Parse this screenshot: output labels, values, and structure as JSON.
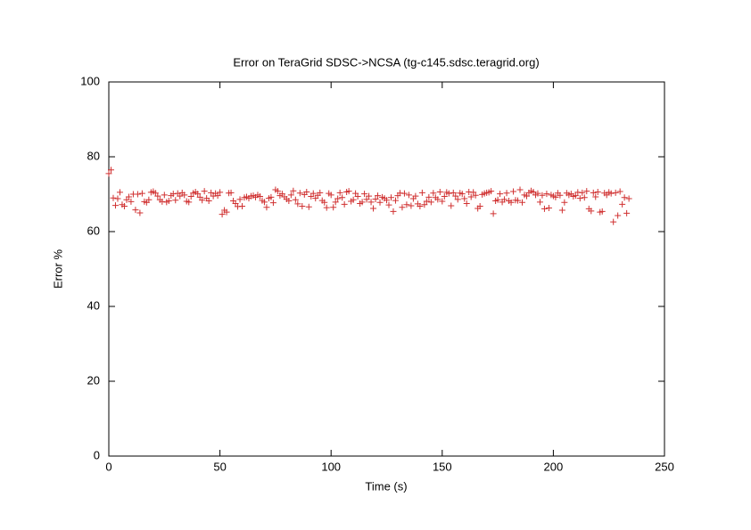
{
  "chart_data": {
    "type": "scatter",
    "title": "Error on TeraGrid SDSC->NCSA (tg-c145.sdsc.teragrid.org)",
    "x_label": "Time (s)",
    "y_label": "Error %",
    "color": "#d03030",
    "xlim": [
      0,
      250
    ],
    "xticks": [
      0,
      50,
      100,
      150,
      200,
      250
    ],
    "ylim": [
      0,
      100
    ],
    "yticks": [
      0,
      20,
      40,
      60,
      80,
      100
    ],
    "x": [
      0,
      1,
      2,
      3,
      4,
      5,
      6,
      7,
      8,
      9,
      10,
      11,
      12,
      13,
      14,
      15,
      16,
      17,
      18,
      19,
      20,
      21,
      22,
      23,
      24,
      25,
      26,
      27,
      28,
      29,
      30,
      31,
      32,
      33,
      34,
      35,
      36,
      37,
      38,
      39,
      40,
      41,
      42,
      43,
      44,
      45,
      46,
      47,
      48,
      49,
      50,
      51,
      52,
      53,
      54,
      55,
      56,
      57,
      58,
      59,
      60,
      61,
      62,
      63,
      64,
      65,
      66,
      67,
      68,
      69,
      70,
      71,
      72,
      73,
      74,
      75,
      76,
      77,
      78,
      79,
      80,
      81,
      82,
      83,
      84,
      85,
      86,
      87,
      88,
      89,
      90,
      91,
      92,
      93,
      94,
      95,
      96,
      97,
      98,
      99,
      100,
      101,
      102,
      103,
      104,
      105,
      106,
      107,
      108,
      109,
      110,
      111,
      112,
      113,
      114,
      115,
      116,
      117,
      118,
      119,
      120,
      121,
      122,
      123,
      124,
      125,
      126,
      127,
      128,
      129,
      130,
      131,
      132,
      133,
      134,
      135,
      136,
      137,
      138,
      139,
      140,
      141,
      142,
      143,
      144,
      145,
      146,
      147,
      148,
      149,
      150,
      151,
      152,
      153,
      154,
      155,
      156,
      157,
      158,
      159,
      160,
      161,
      162,
      163,
      164,
      165,
      166,
      167,
      168,
      169,
      170,
      171,
      172,
      173,
      174,
      175,
      176,
      177,
      178,
      179,
      180,
      181,
      182,
      183,
      184,
      185,
      186,
      187,
      188,
      189,
      190,
      191,
      192,
      193,
      194,
      195,
      196,
      197,
      198,
      199,
      200,
      201,
      202,
      203,
      204,
      205,
      206,
      207,
      208,
      209,
      210,
      211,
      212,
      213,
      214,
      215,
      216,
      217,
      218,
      219,
      220,
      221,
      222,
      223,
      224,
      225,
      226,
      227,
      228,
      229,
      230,
      231,
      232,
      233,
      234
    ],
    "values": [
      75.5,
      76.5,
      69,
      67,
      68.8,
      70.5,
      67.2,
      66.8,
      68.5,
      69.3,
      68,
      70,
      65.8,
      70,
      65,
      70.2,
      68,
      67.8,
      68.5,
      70.5,
      70.7,
      70.3,
      69.5,
      68.5,
      68,
      69.8,
      67.9,
      68.2,
      69.6,
      70.1,
      68.4,
      70.2,
      69.5,
      70.4,
      69.8,
      68.1,
      67.9,
      69.4,
      70.3,
      70.6,
      70.1,
      69.2,
      68.4,
      70.8,
      68.9,
      68.2,
      70.4,
      69.5,
      70.2,
      69.6,
      70.5,
      64.6,
      65.7,
      65.2,
      70.3,
      70.4,
      68.2,
      67.5,
      66.7,
      68.6,
      66.8,
      69.1,
      69.3,
      68.9,
      69.5,
      69.6,
      69.2,
      69.8,
      69.4,
      68.3,
      67.9,
      66.5,
      68.9,
      69.2,
      67.7,
      71.2,
      70.8,
      69.6,
      70.1,
      69.3,
      68.7,
      68.2,
      69.8,
      70.9,
      68.5,
      67.4,
      70.3,
      66.8,
      69.9,
      70.6,
      66.6,
      69.4,
      70.2,
      68.9,
      69.7,
      70.4,
      68.3,
      67.8,
      66.4,
      70.2,
      69.8,
      66.5,
      67.9,
      68.8,
      70.4,
      69.1,
      67.3,
      70.6,
      70.8,
      68.1,
      68.5,
      70.2,
      69.4,
      67.5,
      67.9,
      70.1,
      68.6,
      69.5,
      67.9,
      66.2,
      68.7,
      69.6,
      67.8,
      69.2,
      68.9,
      68.4,
      67.1,
      69.1,
      65.4,
      68.3,
      69.6,
      70.3,
      66.5,
      70.2,
      67.2,
      69.8,
      66.9,
      68.8,
      69.5,
      67.4,
      66.8,
      70.4,
      67.2,
      68.1,
      69.2,
      67.9,
      70.3,
      69.1,
      68.6,
      70.6,
      68.1,
      69.4,
      70.5,
      70.2,
      66.9,
      70.4,
      69.5,
      68.6,
      70.3,
      70.1,
      68.8,
      67.5,
      70.6,
      69.3,
      70.5,
      69.7,
      66.2,
      66.8,
      69.9,
      70.2,
      70.4,
      70.5,
      70.8,
      64.8,
      68.2,
      68.5,
      70.1,
      67.9,
      68.6,
      70.3,
      68.2,
      67.8,
      70.7,
      68.4,
      68.3,
      71.2,
      67.8,
      69.8,
      69.5,
      70.4,
      70.9,
      70.6,
      69.8,
      70.2,
      67.9,
      69.7,
      66.1,
      70.1,
      66.3,
      69.8,
      69.5,
      69.2,
      70.3,
      69.7,
      65.7,
      67.8,
      70.3,
      69.8,
      70.1,
      69.4,
      69.6,
      70.5,
      68.9,
      70.4,
      69.1,
      70.8,
      66.1,
      65.5,
      70.4,
      69.3,
      70.6,
      65.2,
      65.4,
      70.3,
      69.8,
      70.5,
      70.2,
      62.6,
      70.4,
      64.3,
      70.7,
      67.3,
      69.1,
      64.9,
      68.8
    ]
  }
}
